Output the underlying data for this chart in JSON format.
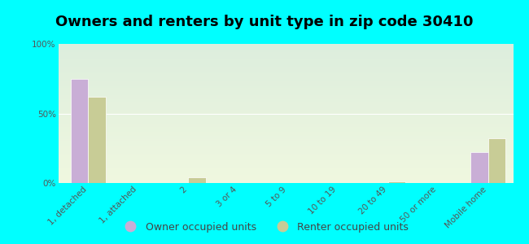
{
  "title": "Owners and renters by unit type in zip code 30410",
  "categories": [
    "1, detached",
    "1, attached",
    "2",
    "3 or 4",
    "5 to 9",
    "10 to 19",
    "20 to 49",
    "50 or more",
    "Mobile home"
  ],
  "owner_values": [
    75,
    0,
    0,
    0,
    0,
    0,
    0,
    0,
    22
  ],
  "renter_values": [
    62,
    0,
    4,
    0,
    0,
    0,
    1,
    0,
    32
  ],
  "owner_color": "#c9aed6",
  "renter_color": "#c8cc96",
  "bg_color": "#00ffff",
  "plot_bg_top": "#ddeedd",
  "plot_bg_bottom": "#f0f8e0",
  "ylim": [
    0,
    100
  ],
  "yticks": [
    0,
    50,
    100
  ],
  "ytick_labels": [
    "0%",
    "50%",
    "100%"
  ],
  "bar_width": 0.35,
  "legend_owner": "Owner occupied units",
  "legend_renter": "Renter occupied units",
  "title_fontsize": 13,
  "tick_fontsize": 7.5,
  "legend_fontsize": 9
}
